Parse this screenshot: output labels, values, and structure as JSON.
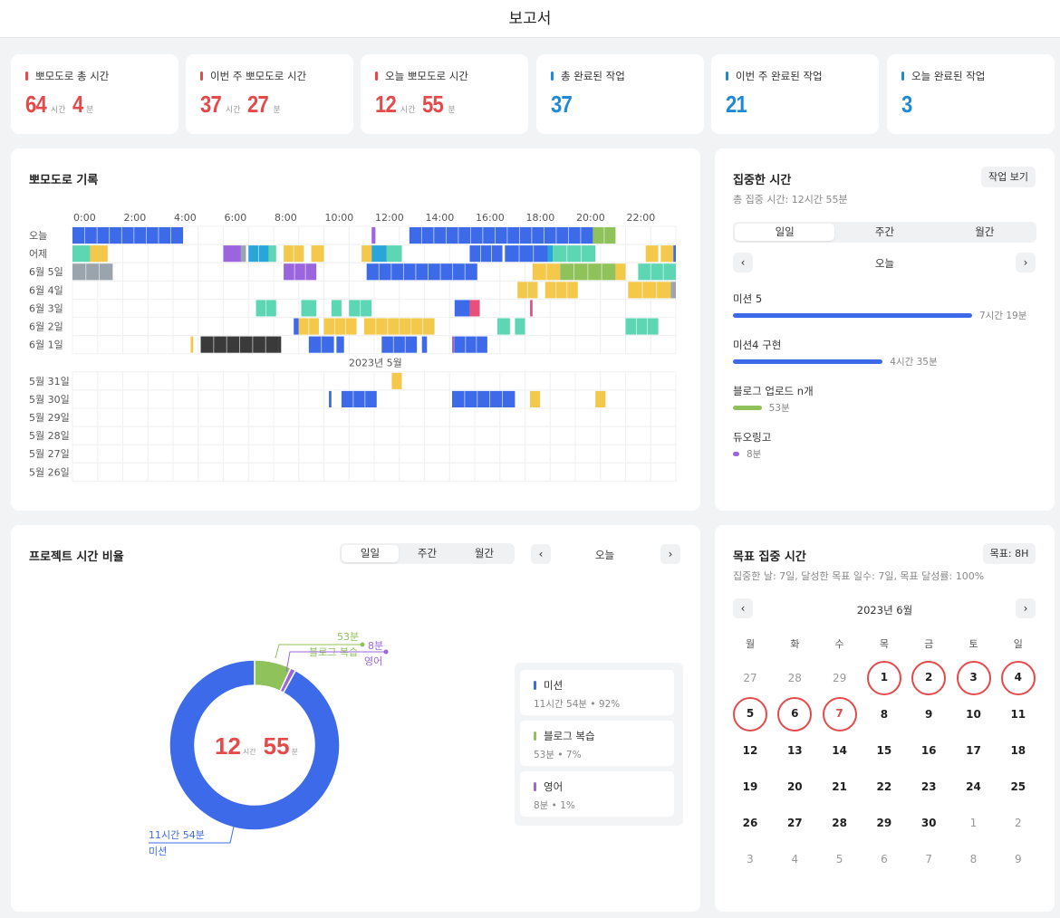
{
  "header": {
    "title": "보고서"
  },
  "stats": [
    {
      "label": "뽀모도로 총 시간",
      "color": "#e44a4a",
      "parts": [
        {
          "n": "64",
          "u": "시간"
        },
        {
          "n": "4",
          "u": "분"
        }
      ]
    },
    {
      "label": "이번 주 뽀모도로 시간",
      "color": "#e44a4a",
      "parts": [
        {
          "n": "37",
          "u": "시간"
        },
        {
          "n": "27",
          "u": "분"
        }
      ]
    },
    {
      "label": "오늘 뽀모도로 시간",
      "color": "#e44a4a",
      "parts": [
        {
          "n": "12",
          "u": "시간"
        },
        {
          "n": "55",
          "u": "분"
        }
      ]
    },
    {
      "label": "총 완료된 작업",
      "color": "#1e8ad6",
      "parts": [
        {
          "n": "37",
          "u": ""
        }
      ]
    },
    {
      "label": "이번 주 완료된 작업",
      "color": "#1e8ad6",
      "parts": [
        {
          "n": "21",
          "u": ""
        }
      ]
    },
    {
      "label": "오늘 완료된 작업",
      "color": "#1e8ad6",
      "parts": [
        {
          "n": "3",
          "u": ""
        }
      ]
    }
  ],
  "pomodoro": {
    "title": "뽀모도로 기록",
    "hours": [
      "0:00",
      "2:00",
      "4:00",
      "6:00",
      "8:00",
      "10:00",
      "12:00",
      "14:00",
      "16:00",
      "18:00",
      "20:00",
      "22:00"
    ],
    "month_separator": "2023년 5월",
    "colors": {
      "mission": "#3d6ae8",
      "yellow": "#f4c84a",
      "teal": "#5dd6b4",
      "purple": "#9b66dd",
      "green": "#8fc25a",
      "gray": "#9aa4ac",
      "dark": "#3a3a3a",
      "pink": "#e8507a",
      "cyan": "#2aa5d8"
    },
    "rows": [
      {
        "label": "오늘",
        "blocks": [
          [
            0,
            4.4,
            "mission"
          ],
          [
            11.9,
            12.05,
            "purple"
          ],
          [
            13.4,
            20.7,
            "mission"
          ],
          [
            20.7,
            21.6,
            "green"
          ]
        ]
      },
      {
        "label": "어제",
        "blocks": [
          [
            0,
            0.7,
            "teal"
          ],
          [
            0.7,
            1.4,
            "yellow"
          ],
          [
            6,
            6.7,
            "purple"
          ],
          [
            6.7,
            6.9,
            "gray"
          ],
          [
            7,
            7.8,
            "cyan"
          ],
          [
            7.8,
            8.1,
            "teal"
          ],
          [
            8.4,
            9.2,
            "yellow"
          ],
          [
            9.5,
            10,
            "yellow"
          ],
          [
            11.5,
            11.9,
            "yellow"
          ],
          [
            11.9,
            12.5,
            "cyan"
          ],
          [
            12.5,
            13.1,
            "teal"
          ],
          [
            15.8,
            17.1,
            "mission"
          ],
          [
            17.2,
            18.9,
            "mission"
          ],
          [
            18.9,
            19.1,
            "cyan"
          ],
          [
            19.1,
            20.8,
            "teal"
          ],
          [
            22.8,
            23.3,
            "yellow"
          ],
          [
            23.4,
            23.9,
            "yellow"
          ],
          [
            23.9,
            24,
            "mission"
          ]
        ]
      },
      {
        "label": "6월 5일",
        "blocks": [
          [
            0,
            1.6,
            "gray"
          ],
          [
            8.4,
            9.7,
            "purple"
          ],
          [
            11.7,
            16.1,
            "mission"
          ],
          [
            18.3,
            19.4,
            "yellow"
          ],
          [
            19.4,
            21.6,
            "green"
          ],
          [
            21.6,
            22,
            "yellow"
          ],
          [
            22.5,
            24,
            "teal"
          ]
        ]
      },
      {
        "label": "6월 4일",
        "blocks": [
          [
            17.7,
            18.5,
            "yellow"
          ],
          [
            18.8,
            20.1,
            "yellow"
          ],
          [
            22.1,
            23.8,
            "yellow"
          ],
          [
            23.8,
            24,
            "gray"
          ]
        ]
      },
      {
        "label": "6월 3일",
        "blocks": [
          [
            7.3,
            8.1,
            "teal"
          ],
          [
            9.1,
            9.7,
            "teal"
          ],
          [
            10.3,
            10.7,
            "teal"
          ],
          [
            11,
            11.9,
            "teal"
          ],
          [
            15.2,
            15.8,
            "mission"
          ],
          [
            15.8,
            16.2,
            "pink"
          ],
          [
            18.2,
            18.3,
            "pink"
          ]
        ]
      },
      {
        "label": "6월 2일",
        "blocks": [
          [
            8.8,
            9,
            "mission"
          ],
          [
            9,
            9.8,
            "yellow"
          ],
          [
            10,
            11.3,
            "yellow"
          ],
          [
            11.6,
            14.4,
            "yellow"
          ],
          [
            16.9,
            17,
            "teal"
          ],
          [
            17,
            17.4,
            "teal"
          ],
          [
            17.6,
            18,
            "teal"
          ],
          [
            22,
            23.3,
            "teal"
          ]
        ]
      },
      {
        "label": "6월 1일",
        "blocks": [
          [
            4.7,
            4.8,
            "yellow"
          ],
          [
            5.1,
            8.2,
            "dark"
          ],
          [
            8.2,
            8.3,
            "dark"
          ],
          [
            9.4,
            10.4,
            "mission"
          ],
          [
            10.5,
            10.8,
            "mission"
          ],
          [
            12.3,
            13.7,
            "mission"
          ],
          [
            13.9,
            14.1,
            "mission"
          ],
          [
            15.1,
            15.2,
            "purple"
          ],
          [
            15.2,
            16.5,
            "mission"
          ]
        ]
      },
      {
        "label": "",
        "separator": true,
        "blocks": []
      },
      {
        "label": "5월 31일",
        "blocks": [
          [
            12.7,
            13.1,
            "yellow"
          ]
        ]
      },
      {
        "label": "5월 30일",
        "blocks": [
          [
            10.2,
            10.3,
            "mission"
          ],
          [
            10.7,
            12.1,
            "mission"
          ],
          [
            15.1,
            17.6,
            "mission"
          ],
          [
            18.2,
            18.6,
            "yellow"
          ],
          [
            20.8,
            21.2,
            "yellow"
          ]
        ]
      },
      {
        "label": "5월 29일",
        "blocks": []
      },
      {
        "label": "5월 28일",
        "blocks": []
      },
      {
        "label": "5월 27일",
        "blocks": []
      },
      {
        "label": "5월 26일",
        "blocks": []
      }
    ]
  },
  "focus": {
    "title": "집중한 시간",
    "view_tasks": "작업 보기",
    "total": "총 집중 시간: 12시간 55분",
    "tabs": [
      "일일",
      "주간",
      "월간"
    ],
    "nav": {
      "label": "오늘",
      "prev": "‹",
      "next": "›"
    },
    "items": [
      {
        "name": "미션 5",
        "value": "7시간 19분",
        "color": "#3d6ae8",
        "fraction": 0.567
      },
      {
        "name": "미션4 구현",
        "value": "4시간 35분",
        "color": "#3d6ae8",
        "fraction": 0.355
      },
      {
        "name": "블로그 업로드 n개",
        "value": "53분",
        "color": "#8fc25a",
        "fraction": 0.068
      },
      {
        "name": "듀오링고",
        "value": "8분",
        "color": "#9b66dd",
        "fraction": 0.01
      }
    ]
  },
  "ratio": {
    "title": "프로젝트 시간 비율",
    "tabs": [
      "일일",
      "주간",
      "월간"
    ],
    "nav": {
      "label": "오늘",
      "prev": "‹",
      "next": "›"
    },
    "center": [
      {
        "n": "12",
        "u": "시간"
      },
      {
        "n": "55",
        "u": "분"
      }
    ],
    "chart_data": {
      "type": "pie",
      "slices": [
        {
          "name": "미션",
          "value": 92,
          "time": "11시간 54분",
          "color": "#3d6ae8"
        },
        {
          "name": "블로그 복습",
          "value": 7,
          "time": "53분",
          "color": "#8fc25a"
        },
        {
          "name": "영어",
          "value": 1,
          "time": "8분",
          "color": "#9b66dd"
        }
      ]
    },
    "legend": [
      {
        "name": "미션",
        "desc": "11시간 54분 • 92%",
        "color": "#3d6ae8"
      },
      {
        "name": "블로그 복습",
        "desc": "53분 • 7%",
        "color": "#8fc25a"
      },
      {
        "name": "영어",
        "desc": "8분 • 1%",
        "color": "#9b66dd"
      }
    ]
  },
  "goal": {
    "title": "목표 집중 시간",
    "target": "목표: 8H",
    "summary": "집중한 날: 7일, 달성한 목표 일수: 7일, 목표 달성률: 100%",
    "month": "2023년 6월",
    "prev": "‹",
    "next": "›",
    "weekdays": [
      "월",
      "화",
      "수",
      "목",
      "금",
      "토",
      "일"
    ],
    "weeks": [
      [
        [
          "27",
          "o"
        ],
        [
          "28",
          "o"
        ],
        [
          "29",
          "o"
        ],
        [
          "1",
          "g"
        ],
        [
          "2",
          "g"
        ],
        [
          "3",
          "g"
        ],
        [
          "4",
          "g"
        ]
      ],
      [
        [
          "5",
          "g"
        ],
        [
          "6",
          "g"
        ],
        [
          "7",
          "t"
        ],
        [
          "8",
          ""
        ],
        [
          "9",
          ""
        ],
        [
          "10",
          ""
        ],
        [
          "11",
          ""
        ]
      ],
      [
        [
          "12",
          ""
        ],
        [
          "13",
          ""
        ],
        [
          "14",
          ""
        ],
        [
          "15",
          ""
        ],
        [
          "16",
          ""
        ],
        [
          "17",
          ""
        ],
        [
          "18",
          ""
        ]
      ],
      [
        [
          "19",
          ""
        ],
        [
          "20",
          ""
        ],
        [
          "21",
          ""
        ],
        [
          "22",
          ""
        ],
        [
          "23",
          ""
        ],
        [
          "24",
          ""
        ],
        [
          "25",
          ""
        ]
      ],
      [
        [
          "26",
          ""
        ],
        [
          "27",
          ""
        ],
        [
          "28",
          ""
        ],
        [
          "29",
          ""
        ],
        [
          "30",
          ""
        ],
        [
          "1",
          "o"
        ],
        [
          "2",
          "o"
        ]
      ],
      [
        [
          "3",
          "o"
        ],
        [
          "4",
          "o"
        ],
        [
          "5",
          "o"
        ],
        [
          "6",
          "o"
        ],
        [
          "7",
          "o"
        ],
        [
          "8",
          "o"
        ],
        [
          "9",
          "o"
        ]
      ]
    ]
  }
}
